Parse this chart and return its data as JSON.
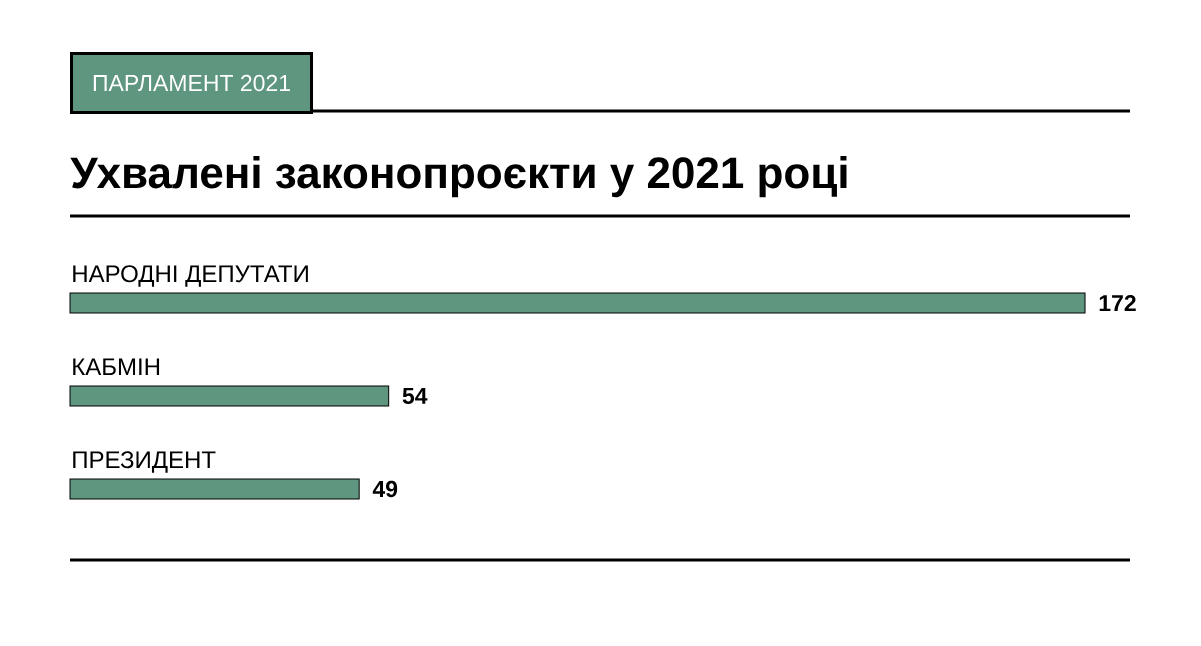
{
  "chart_data": {
    "type": "bar",
    "orientation": "horizontal",
    "title": "Ухвалені законопроєкти у 2021 році",
    "annotations": [
      "ПАРЛАМЕНТ 2021"
    ],
    "categories": [
      "НАРОДНІ ДЕПУТАТИ",
      "КАБМІН",
      "ПРЕЗИДЕНТ"
    ],
    "values": [
      172,
      54,
      49
    ],
    "color": "#5e9680",
    "data_labels": true
  }
}
